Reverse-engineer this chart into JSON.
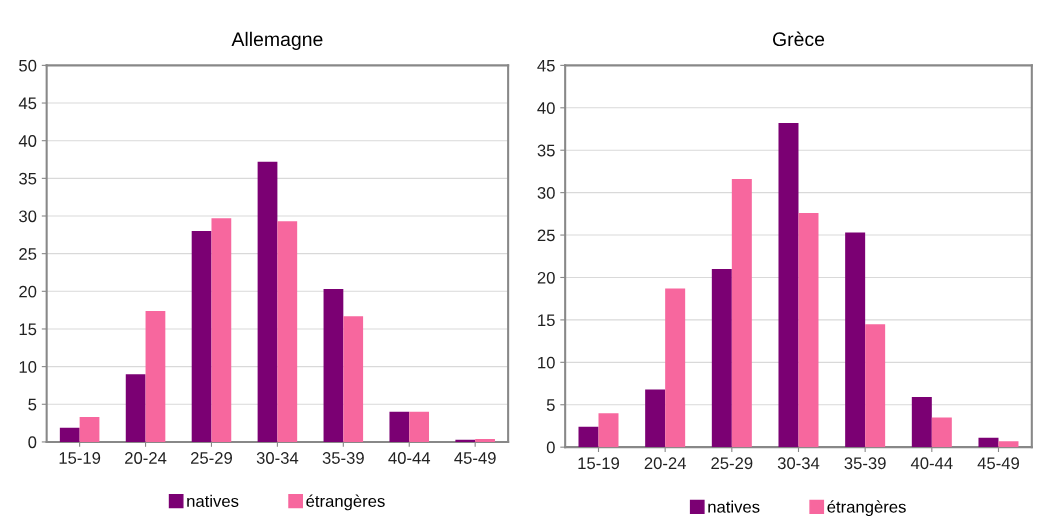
{
  "chart_data": [
    {
      "type": "bar",
      "title": "Allemagne",
      "categories": [
        "15-19",
        "20-24",
        "25-29",
        "30-34",
        "35-39",
        "40-44",
        "45-49"
      ],
      "series": [
        {
          "name": "natives",
          "color": "#7b0073",
          "values": [
            1.9,
            9,
            28,
            37.2,
            20.3,
            4,
            0.3
          ]
        },
        {
          "name": "étrangères",
          "color": "#f7679e",
          "values": [
            3.3,
            17.4,
            29.7,
            29.3,
            16.7,
            4,
            0.4
          ]
        }
      ],
      "ylim": [
        0,
        50
      ],
      "yticks": [
        0,
        5,
        10,
        15,
        20,
        25,
        30,
        35,
        40,
        45,
        50
      ],
      "grid": "y",
      "legend": "bottom"
    },
    {
      "type": "bar",
      "title": "Grèce",
      "categories": [
        "15-19",
        "20-24",
        "25-29",
        "30-34",
        "35-39",
        "40-44",
        "45-49"
      ],
      "series": [
        {
          "name": "natives",
          "color": "#7b0073",
          "values": [
            2.4,
            6.8,
            21,
            38.2,
            25.3,
            5.9,
            1.1
          ]
        },
        {
          "name": "étrangères",
          "color": "#f7679e",
          "values": [
            4,
            18.7,
            31.6,
            27.6,
            14.5,
            3.5,
            0.7
          ]
        }
      ],
      "ylim": [
        0,
        45
      ],
      "yticks": [
        0,
        5,
        10,
        15,
        20,
        25,
        30,
        35,
        40,
        45
      ],
      "grid": "y",
      "legend": "bottom"
    }
  ]
}
